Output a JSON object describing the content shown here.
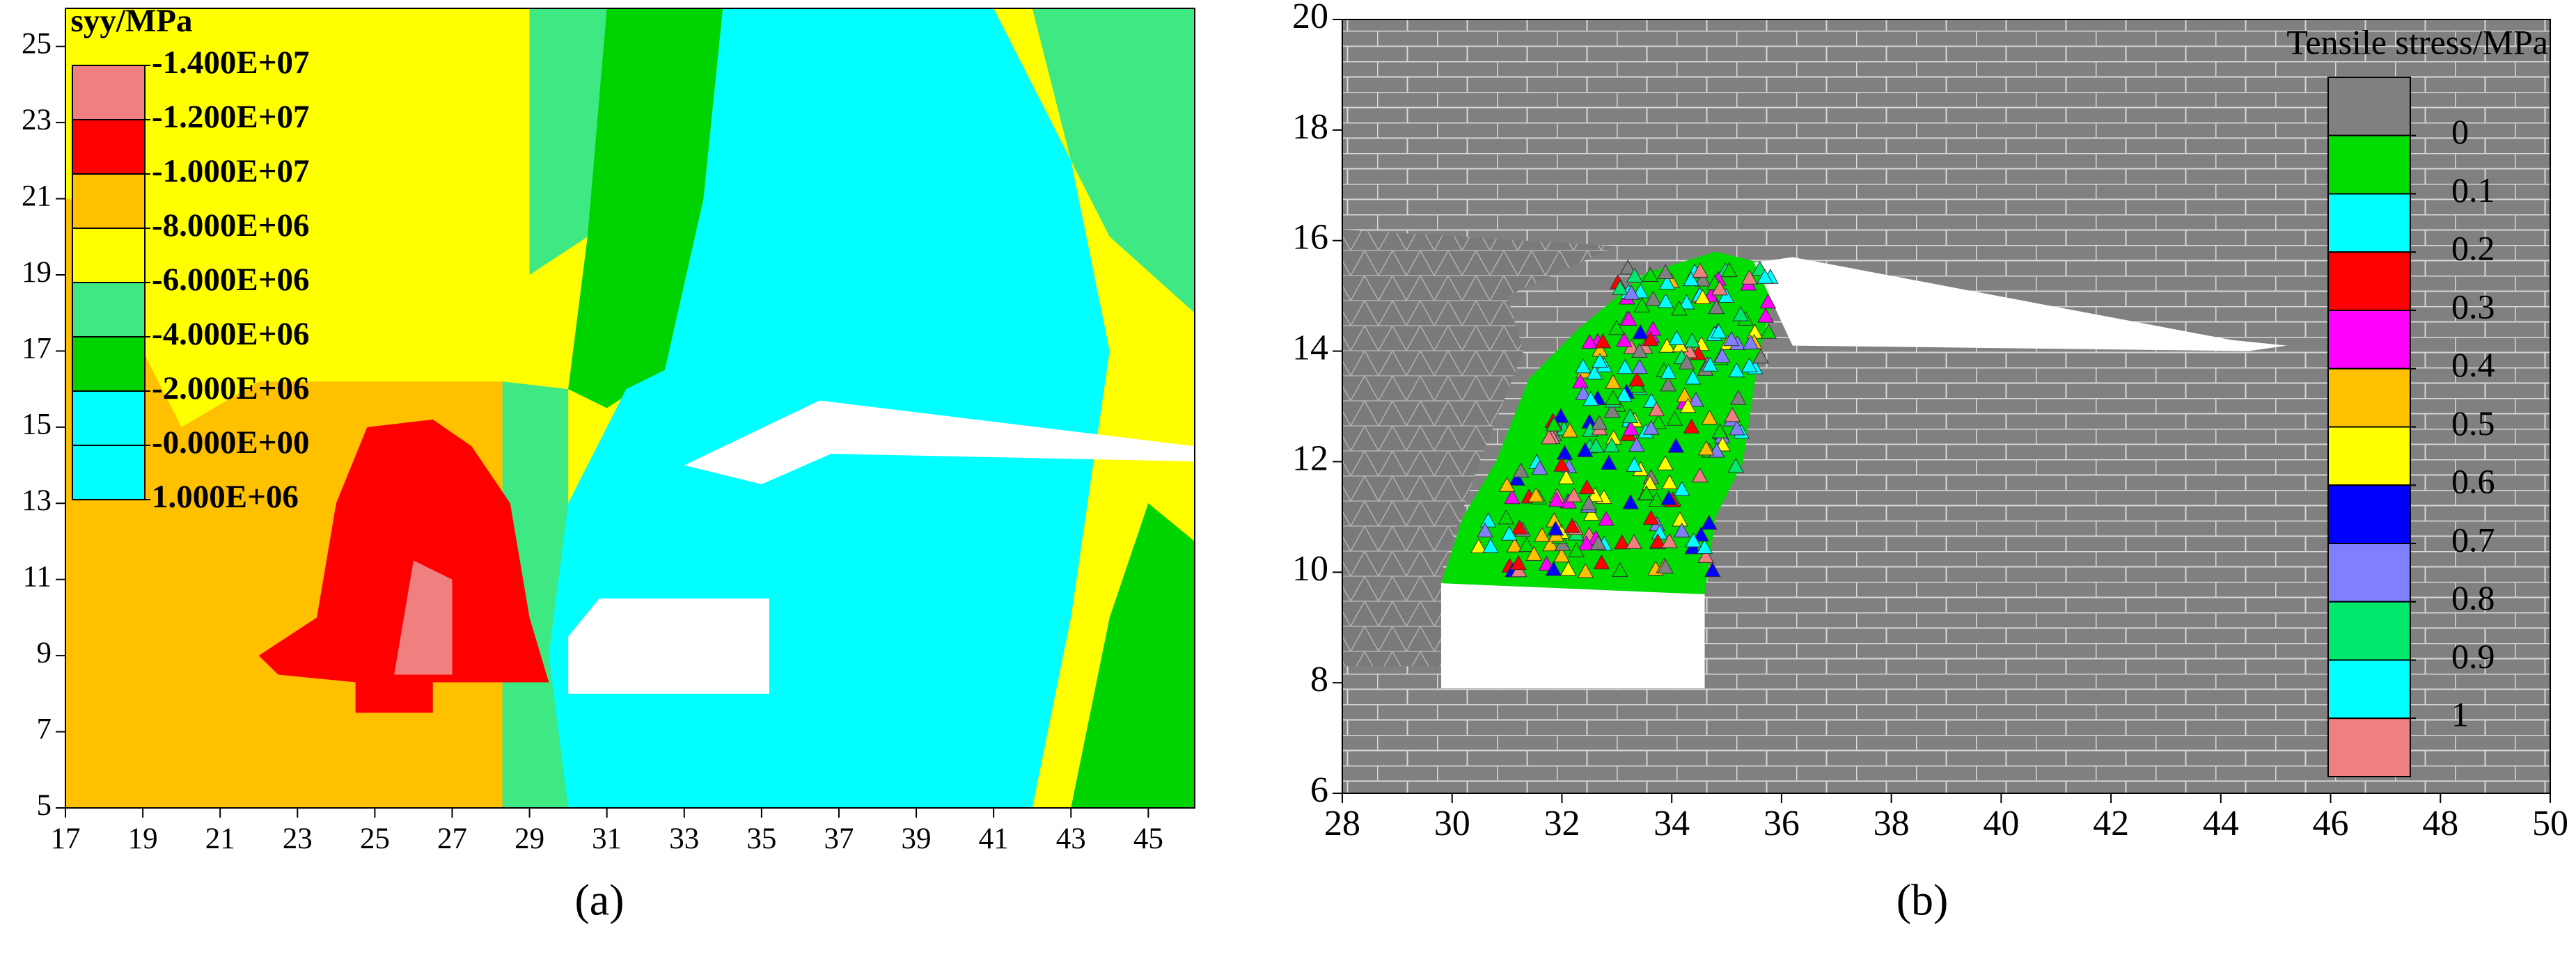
{
  "chart_data": [
    {
      "type": "contour",
      "label": "(a)",
      "legend_title": "syy/MPa",
      "levels": [
        {
          "value": -14000000,
          "label": "-1.400E+07"
        },
        {
          "value": -12000000,
          "label": "-1.200E+07"
        },
        {
          "value": -10000000,
          "label": "-1.000E+07"
        },
        {
          "value": -8000000,
          "label": "-8.000E+06"
        },
        {
          "value": -6000000,
          "label": "-6.000E+06"
        },
        {
          "value": -4000000,
          "label": "-4.000E+06"
        },
        {
          "value": -2000000,
          "label": "-2.000E+06"
        },
        {
          "value": 0,
          "label": "-0.000E+00"
        },
        {
          "value": 1000000,
          "label": "1.000E+06"
        }
      ],
      "colors": [
        "#f08080",
        "#ff0000",
        "#ffc000",
        "#ffff00",
        "#3ee882",
        "#00d400",
        "#00ffff",
        "#00ffff"
      ],
      "xlim": [
        17,
        46.2
      ],
      "xticks": [
        17,
        19,
        21,
        23,
        25,
        27,
        29,
        31,
        33,
        35,
        37,
        39,
        41,
        43,
        45
      ],
      "ylim": [
        5,
        26
      ],
      "yticks": [
        5,
        7,
        9,
        11,
        13,
        15,
        17,
        19,
        21,
        23,
        25
      ]
    },
    {
      "type": "contour",
      "label": "(b)",
      "legend_title": "Tensile stress/MPa",
      "levels": [
        0,
        0.1,
        0.2,
        0.3,
        0.4,
        0.5,
        0.6,
        0.7,
        0.8,
        0.9,
        1
      ],
      "colors": [
        "#808080",
        "#00dd00",
        "#00ffff",
        "#ff0000",
        "#ff00ff",
        "#ffc000",
        "#ffff00",
        "#0000ff",
        "#8080ff",
        "#00e86e",
        "#00ffff",
        "#f08080"
      ],
      "xlim": [
        28,
        50
      ],
      "xticks": [
        28,
        30,
        32,
        34,
        36,
        38,
        40,
        42,
        44,
        46,
        48,
        50
      ],
      "ylim": [
        6,
        20
      ],
      "yticks": [
        6,
        8,
        10,
        12,
        14,
        16,
        18,
        20
      ]
    }
  ]
}
